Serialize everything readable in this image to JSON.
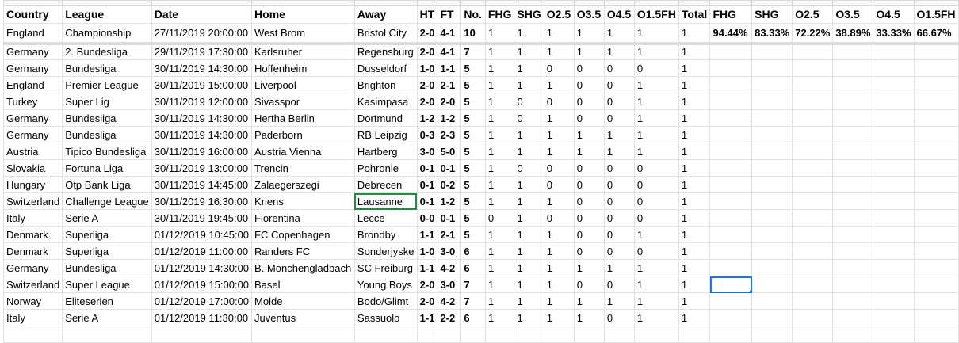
{
  "headers": [
    "Country",
    "League",
    "Date",
    "Home",
    "Away",
    "HT",
    "FT",
    "No.",
    "FHG",
    "SHG",
    "O2.5",
    "O3.5",
    "O4.5",
    "O1.5FH",
    "Total",
    "FHG",
    "SHG",
    "O2.5",
    "O3.5",
    "O4.5",
    "O1.5FH"
  ],
  "summary": [
    "94.44%",
    "83.33%",
    "72.22%",
    "38.89%",
    "33.33%",
    "66.67%"
  ],
  "rows": [
    [
      "England",
      "Championship",
      "27/11/2019 20:00:00",
      "West Brom",
      "Bristol City",
      "2-0",
      "4-1",
      "10",
      "1",
      "1",
      "1",
      "1",
      "1",
      "1",
      "1"
    ],
    [
      "Germany",
      "2. Bundesliga",
      "29/11/2019 17:30:00",
      "Karlsruher",
      "Regensburg",
      "2-0",
      "4-1",
      "7",
      "1",
      "1",
      "1",
      "1",
      "1",
      "1",
      "1"
    ],
    [
      "Germany",
      "Bundesliga",
      "30/11/2019 14:30:00",
      "Hoffenheim",
      "Dusseldorf",
      "1-0",
      "1-1",
      "5",
      "1",
      "1",
      "0",
      "0",
      "0",
      "0",
      "1"
    ],
    [
      "England",
      "Premier League",
      "30/11/2019 15:00:00",
      "Liverpool",
      "Brighton",
      "2-0",
      "2-1",
      "5",
      "1",
      "1",
      "1",
      "0",
      "0",
      "1",
      "1"
    ],
    [
      "Turkey",
      "Super Lig",
      "30/11/2019 12:00:00",
      "Sivasspor",
      "Kasimpasa",
      "2-0",
      "2-0",
      "5",
      "1",
      "0",
      "0",
      "0",
      "0",
      "1",
      "1"
    ],
    [
      "Germany",
      "Bundesliga",
      "30/11/2019 14:30:00",
      "Hertha Berlin",
      "Dortmund",
      "1-2",
      "1-2",
      "5",
      "1",
      "0",
      "1",
      "0",
      "0",
      "1",
      "1"
    ],
    [
      "Germany",
      "Bundesliga",
      "30/11/2019 14:30:00",
      "Paderborn",
      "RB Leipzig",
      "0-3",
      "2-3",
      "5",
      "1",
      "1",
      "1",
      "1",
      "1",
      "1",
      "1"
    ],
    [
      "Austria",
      "Tipico Bundesliga",
      "30/11/2019 16:00:00",
      "Austria Vienna",
      "Hartberg",
      "3-0",
      "5-0",
      "5",
      "1",
      "1",
      "1",
      "1",
      "1",
      "1",
      "1"
    ],
    [
      "Slovakia",
      "Fortuna Liga",
      "30/11/2019 13:00:00",
      "Trencin",
      "Pohronie",
      "0-1",
      "0-1",
      "5",
      "1",
      "0",
      "0",
      "0",
      "0",
      "0",
      "1"
    ],
    [
      "Hungary",
      "Otp Bank Liga",
      "30/11/2019 14:45:00",
      "Zalaegerszegi",
      "Debrecen",
      "0-1",
      "0-2",
      "5",
      "1",
      "1",
      "0",
      "0",
      "0",
      "0",
      "1"
    ],
    [
      "Switzerland",
      "Challenge League",
      "30/11/2019 16:30:00",
      "Kriens",
      "Lausanne",
      "0-1",
      "1-2",
      "5",
      "1",
      "1",
      "1",
      "0",
      "0",
      "0",
      "1"
    ],
    [
      "Italy",
      "Serie A",
      "30/11/2019 19:45:00",
      "Fiorentina",
      "Lecce",
      "0-0",
      "0-1",
      "5",
      "0",
      "1",
      "0",
      "0",
      "0",
      "0",
      "1"
    ],
    [
      "Denmark",
      "Superliga",
      "01/12/2019 10:45:00",
      "FC Copenhagen",
      "Brondby",
      "1-1",
      "2-1",
      "5",
      "1",
      "1",
      "1",
      "0",
      "0",
      "1",
      "1"
    ],
    [
      "Denmark",
      "Superliga",
      "01/12/2019 11:00:00",
      "Randers FC",
      "Sonderjyske",
      "1-0",
      "3-0",
      "6",
      "1",
      "1",
      "1",
      "0",
      "0",
      "0",
      "1"
    ],
    [
      "Germany",
      "Bundesliga",
      "01/12/2019 14:30:00",
      "B. Monchengladbach",
      "SC Freiburg",
      "1-1",
      "4-2",
      "6",
      "1",
      "1",
      "1",
      "1",
      "1",
      "1",
      "1"
    ],
    [
      "Switzerland",
      "Super League",
      "01/12/2019 15:00:00",
      "Basel",
      "Young Boys",
      "2-0",
      "3-0",
      "7",
      "1",
      "1",
      "1",
      "0",
      "0",
      "1",
      "1"
    ],
    [
      "Norway",
      "Eliteserien",
      "01/12/2019 17:00:00",
      "Molde",
      "Bodo/Glimt",
      "2-0",
      "4-2",
      "7",
      "1",
      "1",
      "1",
      "1",
      "1",
      "1",
      "1"
    ],
    [
      "Italy",
      "Serie A",
      "01/12/2019 11:30:00",
      "Juventus",
      "Sassuolo",
      "1-1",
      "2-2",
      "6",
      "1",
      "1",
      "1",
      "1",
      "0",
      "1",
      "1"
    ]
  ],
  "selection": {
    "active_cell_color": "#1a73e8",
    "highlight_cell_color": "#1e8e3e"
  }
}
